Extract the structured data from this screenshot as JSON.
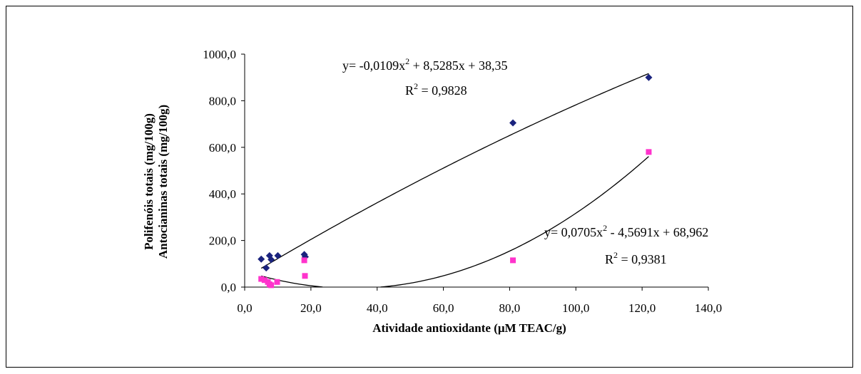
{
  "chart_data": {
    "type": "scatter",
    "xlabel": "Atividade antioxidante (µM TEAC/g)",
    "ylabel_lines": [
      "Polifenóis totais (mg/100g)",
      "Antocianinas totais (mg/100g)"
    ],
    "xlim": [
      0,
      140
    ],
    "ylim": [
      0,
      1000
    ],
    "x_ticks": [
      "0,0",
      "20,0",
      "40,0",
      "60,0",
      "80,0",
      "100,0",
      "120,0",
      "140,0"
    ],
    "y_ticks": [
      "0,0",
      "200,0",
      "400,0",
      "600,0",
      "800,0",
      "1000,0"
    ],
    "grid": false,
    "legend": "none",
    "series": [
      {
        "color": "#1a237e",
        "marker": "diamond",
        "points": [
          [
            5.0,
            120
          ],
          [
            6.5,
            82
          ],
          [
            7.5,
            135
          ],
          [
            8.0,
            118
          ],
          [
            10.0,
            135
          ],
          [
            18.0,
            140
          ],
          [
            18.3,
            130
          ],
          [
            81.0,
            705
          ],
          [
            122.0,
            900
          ]
        ],
        "trend": {
          "a": -0.0109,
          "b": 8.5285,
          "c": 38.35,
          "x_range": [
            5,
            122
          ],
          "equation_main": "y= -0,0109x",
          "equation_sup": "2",
          "equation_rest": " + 8,5285x + 38,35",
          "r2_main": "R",
          "r2_sup": "2",
          "r2_rest": " = 0,9828"
        }
      },
      {
        "color": "#ff33cc",
        "marker": "square",
        "points": [
          [
            5.0,
            35
          ],
          [
            6.0,
            30
          ],
          [
            7.0,
            22
          ],
          [
            7.5,
            12
          ],
          [
            8.0,
            8
          ],
          [
            9.8,
            22
          ],
          [
            18.0,
            115
          ],
          [
            18.2,
            48
          ],
          [
            81.0,
            115
          ],
          [
            122.0,
            580
          ]
        ],
        "trend": {
          "a": 0.0705,
          "b": -4.5691,
          "c": 68.962,
          "x_range": [
            5,
            122
          ],
          "equation_main": "y= 0,0705x",
          "equation_sup": "2",
          "equation_rest": " - 4,5691x + 68,962",
          "r2_main": "R",
          "r2_sup": "2",
          "r2_rest": " = 0,9381"
        }
      }
    ]
  }
}
